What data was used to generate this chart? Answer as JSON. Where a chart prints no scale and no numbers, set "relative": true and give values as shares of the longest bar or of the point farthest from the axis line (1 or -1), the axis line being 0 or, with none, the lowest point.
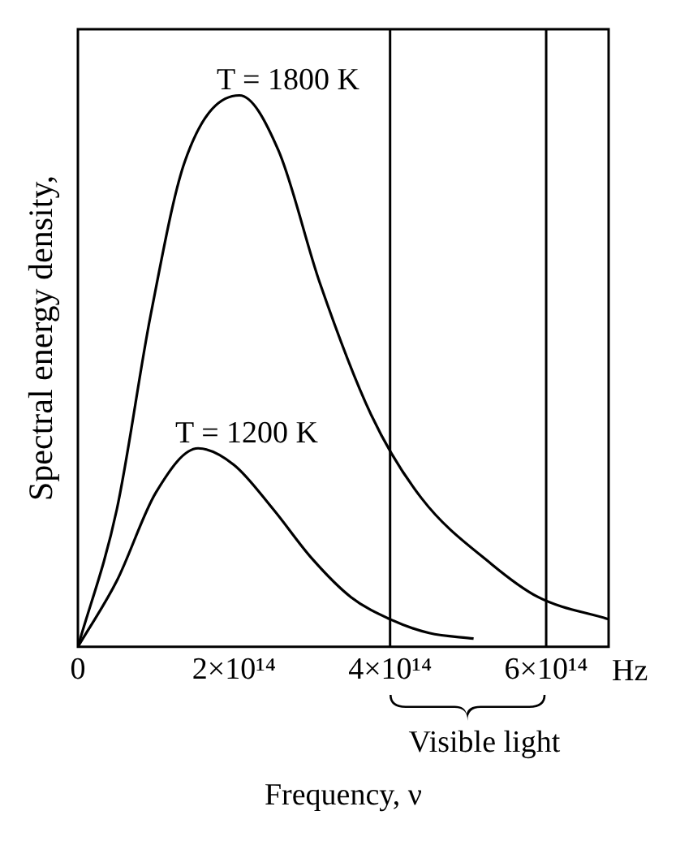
{
  "chart_data": {
    "type": "line",
    "xlabel": "Frequency, ν",
    "ylabel": "Spectral energy density,",
    "relative": true,
    "xlim": [
      0,
      680000000000000
    ],
    "xticks": [
      0,
      {
        "value": 200000000000000,
        "label": "2×10¹⁴"
      },
      {
        "value": 400000000000000,
        "label": "4×10¹⁴"
      },
      {
        "value": 600000000000000,
        "label": "6×10¹⁴"
      }
    ],
    "series": [
      {
        "name": "T = 1800 K",
        "color": "#000000",
        "x": [
          0,
          50000000000000,
          93000000000000,
          137000000000000,
          207000000000000,
          257000000000000,
          310000000000000,
          376000000000000,
          440000000000000,
          530000000000000,
          590000000000000,
          680000000000000
        ],
        "values": [
          0,
          0.25,
          0.6,
          0.88,
          1,
          0.9,
          0.66,
          0.42,
          0.27,
          0.15,
          0.09,
          0.05
        ]
      },
      {
        "name": "T = 1200 K",
        "color": "#000000",
        "x": [
          0,
          50000000000000,
          100000000000000,
          154000000000000,
          200000000000000,
          250000000000000,
          300000000000000,
          350000000000000,
          400000000000000,
          450000000000000,
          507000000000000
        ],
        "values": [
          0,
          0.12,
          0.28,
          0.36,
          0.33,
          0.25,
          0.16,
          0.09,
          0.05,
          0.025,
          0.015
        ]
      }
    ],
    "ref_lines": [
      {
        "axis": "x",
        "value": 400000000000000
      },
      {
        "axis": "x",
        "value": 600000000000000
      }
    ],
    "annotations": [
      "Hz",
      "Visible light"
    ],
    "grid": false,
    "legend": false,
    "marker": "none",
    "line_style": "solid"
  }
}
